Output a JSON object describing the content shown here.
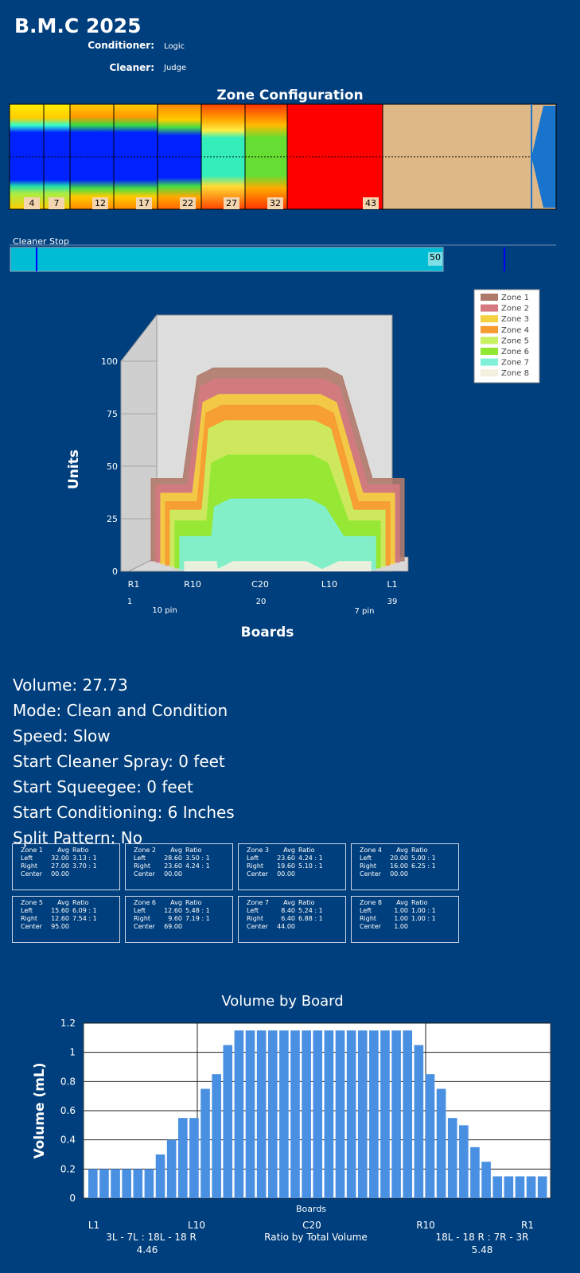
{
  "header": {
    "title": "B.M.C 2025",
    "conditioner_label": "Conditioner:",
    "conditioner_value": "Logic",
    "cleaner_label": "Cleaner:",
    "cleaner_value": "Judge"
  },
  "zone_config": {
    "title": "Zone Configuration",
    "markers": [
      "4",
      "7",
      "12",
      "17",
      "22",
      "27",
      "32",
      "43"
    ]
  },
  "cleaner_stop": {
    "label": "Cleaner Stop",
    "value": "50"
  },
  "chart_data": [
    {
      "type": "area",
      "subtype": "3d-stacked",
      "xlabel": "Boards",
      "ylabel": "Units",
      "ylim": [
        0,
        100
      ],
      "yticks": [
        "0",
        "25",
        "50",
        "75",
        "100"
      ],
      "x_tick_labels": [
        "R1",
        "R10",
        "C20",
        "L10",
        "L1"
      ],
      "x_tick_numbers": [
        "1",
        "20",
        "39"
      ],
      "pin_labels": [
        "10 pin",
        "7 pin"
      ],
      "legend_position": "top-right",
      "series": [
        {
          "name": "Zone 1",
          "color": "#b07a6a"
        },
        {
          "name": "Zone 2",
          "color": "#d47a80"
        },
        {
          "name": "Zone 3",
          "color": "#f5d040"
        },
        {
          "name": "Zone 4",
          "color": "#f79a30"
        },
        {
          "name": "Zone 5",
          "color": "#c8f060"
        },
        {
          "name": "Zone 6",
          "color": "#90e830"
        },
        {
          "name": "Zone 7",
          "color": "#80f0d8"
        },
        {
          "name": "Zone 8",
          "color": "#f4f0e0"
        }
      ]
    },
    {
      "type": "bar",
      "title": "Volume by Board",
      "xlabel": "Boards",
      "ylabel": "Volume (mL)",
      "ylim": [
        0,
        1.2
      ],
      "yticks": [
        "0",
        "0.2",
        "0.4",
        "0.6",
        "0.8",
        "1",
        "1.2"
      ],
      "x_tick_labels": [
        "L1",
        "L10",
        "C20",
        "R10",
        "R1"
      ],
      "values": [
        0.2,
        0.2,
        0.2,
        0.2,
        0.2,
        0.2,
        0.3,
        0.4,
        0.55,
        0.55,
        0.75,
        0.85,
        1.05,
        1.15,
        1.15,
        1.15,
        1.15,
        1.15,
        1.15,
        1.15,
        1.15,
        1.15,
        1.15,
        1.15,
        1.15,
        1.15,
        1.15,
        1.15,
        1.15,
        1.05,
        0.85,
        0.75,
        0.55,
        0.5,
        0.35,
        0.25,
        0.15,
        0.15,
        0.15,
        0.15,
        0.15
      ],
      "color": "#4a90e2"
    }
  ],
  "ratios": {
    "left_label": "3L - 7L : 18L - 18 R",
    "left_value": "4.46",
    "center_label": "Ratio by Total Volume",
    "right_label": "18L - 18 R : 7R - 3R",
    "right_value": "5.48"
  },
  "info": [
    "Volume: 27.73",
    "Mode: Clean and Condition",
    "Speed: Slow",
    "Start Cleaner Spray: 0 feet",
    "Start Squeegee: 0 feet",
    "Start Conditioning: 6 Inches",
    "Split Pattern: No"
  ],
  "zones": [
    {
      "title": "Zone 1",
      "left_avg": "32.00",
      "left_ratio": "3.13 : 1",
      "right_avg": "27.00",
      "right_ratio": "3.70 : 1",
      "center": "00.00"
    },
    {
      "title": "Zone 2",
      "left_avg": "28.60",
      "left_ratio": "3.50 : 1",
      "right_avg": "23.60",
      "right_ratio": "4.24 : 1",
      "center": "00.00"
    },
    {
      "title": "Zone 3",
      "left_avg": "23.60",
      "left_ratio": "4.24 : 1",
      "right_avg": "19.60",
      "right_ratio": "5.10 : 1",
      "center": "00.00"
    },
    {
      "title": "Zone 4",
      "left_avg": "20.00",
      "left_ratio": "5.00 : 1",
      "right_avg": "16.00",
      "right_ratio": "6.25 : 1",
      "center": "00.00"
    },
    {
      "title": "Zone 5",
      "left_avg": "15.60",
      "left_ratio": "6.09 : 1",
      "right_avg": "12.60",
      "right_ratio": "7.54 : 1",
      "center": "95.00"
    },
    {
      "title": "Zone 6",
      "left_avg": "12.60",
      "left_ratio": "5.48 : 1",
      "right_avg": "9.60",
      "right_ratio": "7.19 : 1",
      "center": "69.00"
    },
    {
      "title": "Zone 7",
      "left_avg": "8.40",
      "left_ratio": "5.24 : 1",
      "right_avg": "6.40",
      "right_ratio": "6.88 : 1",
      "center": "44.00"
    },
    {
      "title": "Zone 8",
      "left_avg": "1.00",
      "left_ratio": "1.00 : 1",
      "right_avg": "1.00",
      "right_ratio": "1.00 : 1",
      "center": "1.00"
    }
  ],
  "zone_table_labels": {
    "avg": "Avg",
    "ratio": "Ratio",
    "left": "Left",
    "right": "Right",
    "center": "Center"
  }
}
